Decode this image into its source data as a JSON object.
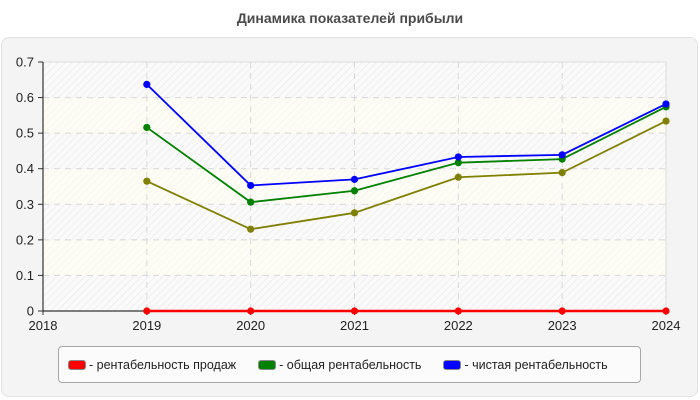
{
  "chart_data": {
    "type": "line",
    "title": "Динамика показателей прибыли",
    "xlabel": "",
    "ylabel": "",
    "x_ticks": [
      "2018",
      "2019",
      "2020",
      "2021",
      "2022",
      "2023",
      "2024"
    ],
    "y_ticks": [
      "0",
      "0.1",
      "0.2",
      "0.3",
      "0.4",
      "0.5",
      "0.6",
      "0.7"
    ],
    "xlim": [
      2018,
      2024
    ],
    "ylim": [
      0,
      0.7
    ],
    "grid": true,
    "legend_position": "bottom",
    "x": [
      2019,
      2020,
      2021,
      2022,
      2023,
      2024
    ],
    "series": [
      {
        "name": "рентабельность продаж",
        "color": "#ff0000",
        "values": [
          0,
          0,
          0,
          0,
          0,
          0
        ],
        "in_legend": true
      },
      {
        "name": "общая рентабельность",
        "color": "#008000",
        "values": [
          0.516,
          0.306,
          0.338,
          0.417,
          0.427,
          0.574
        ],
        "in_legend": true
      },
      {
        "name": "чистая рентабельность",
        "color": "#0000ff",
        "values": [
          0.637,
          0.353,
          0.37,
          0.433,
          0.439,
          0.582
        ],
        "in_legend": true
      },
      {
        "name": "",
        "color": "#808000",
        "values": [
          0.365,
          0.23,
          0.276,
          0.376,
          0.389,
          0.534
        ],
        "in_legend": false
      }
    ]
  },
  "legend": {
    "items": [
      {
        "label": "- рентабельность продаж",
        "color": "#ff0000"
      },
      {
        "label": "- общая рентабельность",
        "color": "#008000"
      },
      {
        "label": "- чистая рентабельность",
        "color": "#0000ff"
      }
    ]
  }
}
